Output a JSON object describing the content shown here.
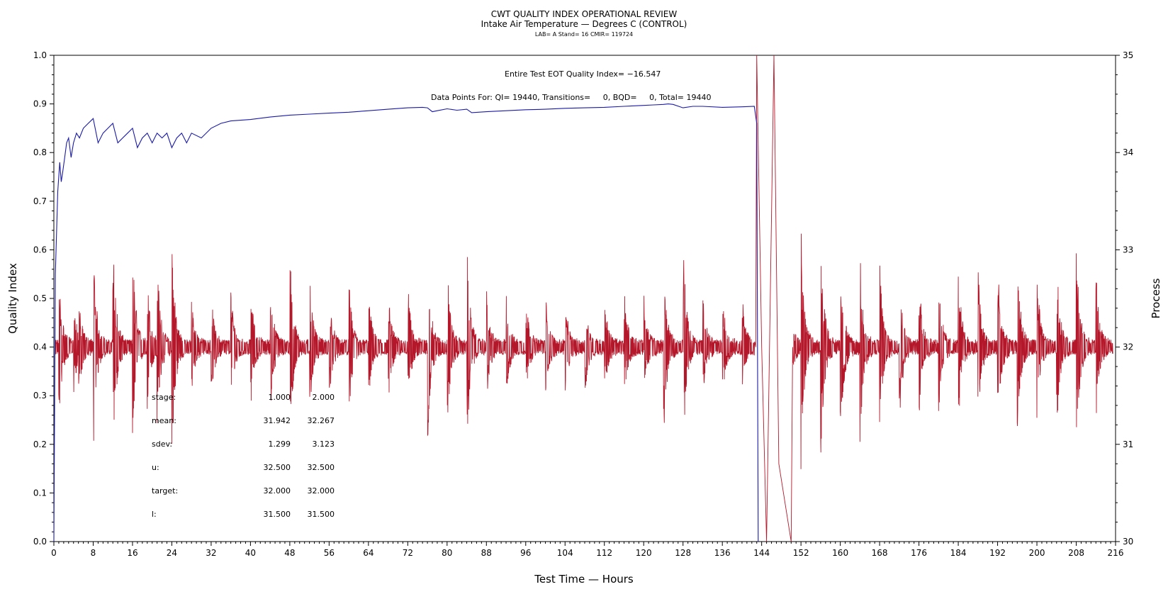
{
  "chart_data": {
    "type": "line",
    "title": "CWT QUALITY INDEX OPERATIONAL REVIEW",
    "subtitle": "Intake Air Temperature — Degrees C (CONTROL)",
    "subtitle2": "LAB= A Stand= 16 CMIR= 119724",
    "xlabel": "Test Time — Hours",
    "ylabel": "Quality Index",
    "y2label": "Process",
    "xlim": [
      0,
      216
    ],
    "ylim": [
      0,
      1.0
    ],
    "y2lim": [
      30,
      35
    ],
    "x_ticks": [
      "0",
      "8",
      "16",
      "24",
      "32",
      "40",
      "48",
      "56",
      "64",
      "72",
      "80",
      "88",
      "96",
      "104",
      "112",
      "120",
      "128",
      "136",
      "144",
      "152",
      "160",
      "168",
      "176",
      "184",
      "192",
      "200",
      "208",
      "216"
    ],
    "y_ticks": [
      "0.0",
      "0.1",
      "0.2",
      "0.3",
      "0.4",
      "0.5",
      "0.6",
      "0.7",
      "0.8",
      "0.9",
      "1.0"
    ],
    "y2_ticks": [
      "30",
      "31",
      "32",
      "33",
      "34",
      "35"
    ],
    "annotations": {
      "eot": "Entire Test EOT Quality Index= −16.547",
      "points": "Data Points For: QI= 19440, Transitions=     0, BQD=     0, Total= 19440"
    },
    "stats_table": [
      {
        "label": "stage:",
        "v1": "1.000",
        "v2": "2.000"
      },
      {
        "label": "mean:",
        "v1": "31.942",
        "v2": "32.267"
      },
      {
        "label": "sdev:",
        "v1": "1.299",
        "v2": "3.123"
      },
      {
        "label": "u:",
        "v1": "32.500",
        "v2": "32.500"
      },
      {
        "label": "target:",
        "v1": "32.000",
        "v2": "32.000"
      },
      {
        "label": "l:",
        "v1": "31.500",
        "v2": "31.500"
      }
    ],
    "series": [
      {
        "axis": "left",
        "color": "#1a1aa6",
        "x": [
          0,
          0.3,
          0.8,
          1.2,
          1.5,
          1.8,
          2.2,
          2.6,
          3,
          3.5,
          4,
          4.6,
          5.2,
          6,
          7,
          8,
          9,
          10,
          11,
          12,
          13,
          14,
          15,
          16,
          17,
          18,
          19,
          20,
          21,
          22,
          23,
          24,
          25,
          26,
          27,
          28,
          30,
          32,
          34,
          36,
          40,
          44,
          48,
          52,
          56,
          60,
          64,
          68,
          72,
          75,
          76,
          77,
          78,
          80,
          82,
          84,
          85,
          88,
          92,
          96,
          100,
          104,
          108,
          112,
          116,
          120,
          122,
          124,
          125,
          126,
          128,
          130,
          132,
          136,
          140,
          142.5,
          143,
          143.3
        ],
        "values": [
          0,
          0.55,
          0.72,
          0.78,
          0.74,
          0.76,
          0.79,
          0.82,
          0.83,
          0.79,
          0.82,
          0.84,
          0.83,
          0.85,
          0.86,
          0.87,
          0.82,
          0.84,
          0.85,
          0.86,
          0.82,
          0.83,
          0.84,
          0.85,
          0.81,
          0.83,
          0.84,
          0.82,
          0.84,
          0.83,
          0.84,
          0.81,
          0.83,
          0.84,
          0.82,
          0.84,
          0.83,
          0.85,
          0.86,
          0.865,
          0.868,
          0.873,
          0.877,
          0.879,
          0.881,
          0.883,
          0.886,
          0.889,
          0.892,
          0.893,
          0.892,
          0.884,
          0.886,
          0.89,
          0.887,
          0.889,
          0.882,
          0.884,
          0.886,
          0.888,
          0.889,
          0.891,
          0.892,
          0.893,
          0.895,
          0.897,
          0.898,
          0.899,
          0.9,
          0.899,
          0.892,
          0.895,
          0.895,
          0.893,
          0.894,
          0.895,
          0.86,
          0
        ]
      },
      {
        "axis": "right",
        "color": "#b5172a",
        "target": 32.0,
        "burst_hours": [
          1,
          4,
          5,
          8,
          12,
          16,
          19,
          21,
          24,
          28,
          32,
          36,
          40,
          44,
          48,
          52,
          56,
          60,
          64,
          68,
          72,
          76,
          80,
          84,
          88,
          92,
          96,
          100,
          104,
          108,
          112,
          116,
          120,
          124,
          128,
          132,
          136,
          140,
          149,
          152,
          156,
          160,
          164,
          168,
          172,
          176,
          180,
          184,
          188,
          192,
          196,
          200,
          204,
          208,
          212
        ],
        "burst_amplitudes": [
          0.75,
          0.45,
          0.5,
          1.05,
          1.2,
          1.1,
          0.7,
          0.9,
          1.2,
          0.45,
          0.5,
          0.55,
          0.6,
          0.7,
          1.0,
          0.7,
          0.55,
          0.7,
          0.55,
          0.55,
          0.6,
          1.0,
          0.85,
          1.1,
          0.55,
          0.5,
          0.5,
          0.5,
          0.5,
          0.5,
          0.5,
          0.6,
          0.5,
          1.0,
          1.1,
          0.5,
          0.5,
          0.5,
          1.2,
          1.2,
          1.2,
          1.0,
          0.95,
          0.9,
          0.8,
          0.7,
          0.7,
          0.8,
          0.8,
          0.9,
          0.95,
          0.75,
          0.9,
          1.1,
          0.75
        ],
        "spikes": [
          {
            "x": 143,
            "y": 35.0
          },
          {
            "x": 145,
            "y": 30.0
          },
          {
            "x": 146.5,
            "y": 35.0
          },
          {
            "x": 150,
            "y": 30.0
          }
        ]
      }
    ]
  }
}
